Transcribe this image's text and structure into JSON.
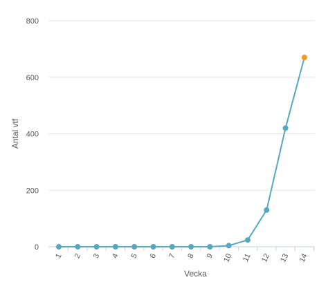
{
  "chart_data": {
    "type": "line",
    "title": "",
    "xlabel": "Vecka",
    "ylabel": "Antal vtf",
    "categories": [
      "1",
      "2",
      "3",
      "4",
      "5",
      "6",
      "7",
      "8",
      "9",
      "10",
      "11",
      "12",
      "13",
      "14"
    ],
    "series": [
      {
        "values": [
          0,
          0,
          0,
          0,
          0,
          0,
          0,
          0,
          0,
          4,
          24,
          130,
          420,
          670
        ]
      }
    ],
    "ylim": [
      0,
      800
    ],
    "yticks": [
      0,
      200,
      400,
      600,
      800
    ],
    "grid": true,
    "colors": {
      "line": "#55a8bf",
      "highlight_point": "#f59a23",
      "grid": "#e6e6e6",
      "axis": "#c8d3e0"
    },
    "highlight_index": 13
  }
}
